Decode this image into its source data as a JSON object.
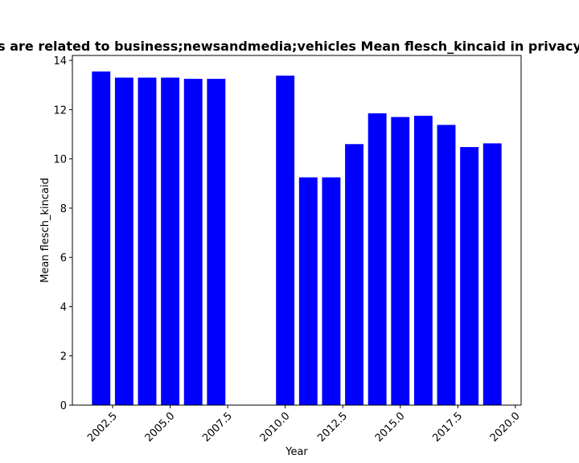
{
  "chart_data": {
    "type": "bar",
    "title": "Mean flesch_kincaid of privacy policies of websites that are related to business;newsandmedia;vehicles Mean flesch_kincaid in privacy policies",
    "title_visible": "s are related to business;newsandmedia;vehicles Mean flesch_kincaid in privacy",
    "xlabel": "Year",
    "ylabel": "Mean flesch_kincaid",
    "x": [
      2002,
      2003,
      2004,
      2005,
      2006,
      2007,
      2010,
      2011,
      2012,
      2013,
      2014,
      2015,
      2016,
      2017,
      2018,
      2019
    ],
    "values": [
      13.55,
      13.3,
      13.3,
      13.3,
      13.25,
      13.25,
      13.38,
      9.25,
      9.25,
      10.6,
      11.85,
      11.7,
      11.75,
      11.38,
      10.48,
      10.63
    ],
    "bar_color": "#0000ff",
    "xlim": [
      2000.75,
      2020.25
    ],
    "ylim": [
      0,
      14.2
    ],
    "xticks": [
      2002.5,
      2005.0,
      2007.5,
      2010.0,
      2012.5,
      2015.0,
      2017.5,
      2020.0
    ],
    "xtick_labels": [
      "2002.5",
      "2005.0",
      "2007.5",
      "2010.0",
      "2012.5",
      "2015.0",
      "2017.5",
      "2020.0"
    ],
    "yticks": [
      0,
      2,
      4,
      6,
      8,
      10,
      12,
      14
    ],
    "ytick_labels": [
      "0",
      "2",
      "4",
      "6",
      "8",
      "10",
      "12",
      "14"
    ],
    "grid": false,
    "legend": "none"
  }
}
